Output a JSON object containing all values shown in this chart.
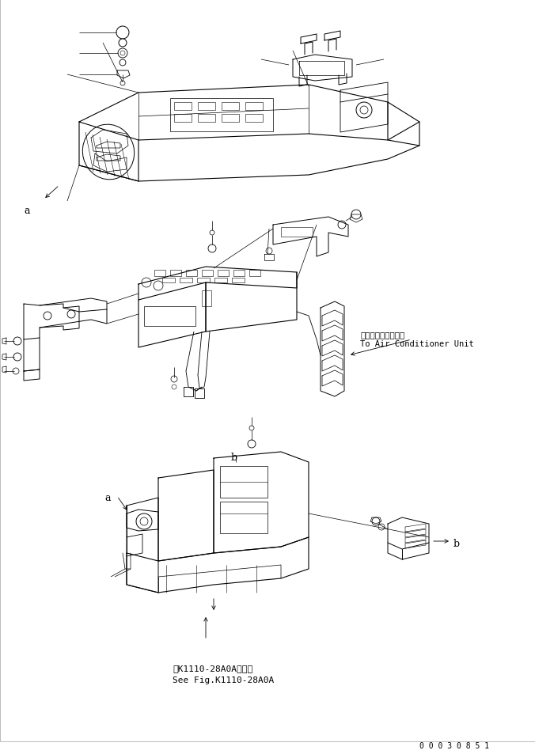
{
  "figure_width": 6.76,
  "figure_height": 9.54,
  "dpi": 100,
  "background_color": "#ffffff",
  "line_color": "#000000",
  "part_number_text": "0 0 0 3 0 8 5 1",
  "annotation_ja": "エアコンユニットへ",
  "annotation_en": "To Air Conditioner Unit",
  "ref_text_ja": "第K1110-28A0A図参照",
  "ref_text_en": "See Fig.K1110-28A0A",
  "label_a": "a",
  "label_b": "b",
  "font_size_annotation": 7.5,
  "font_size_ref": 8,
  "font_size_label": 9,
  "font_size_partnum": 7
}
